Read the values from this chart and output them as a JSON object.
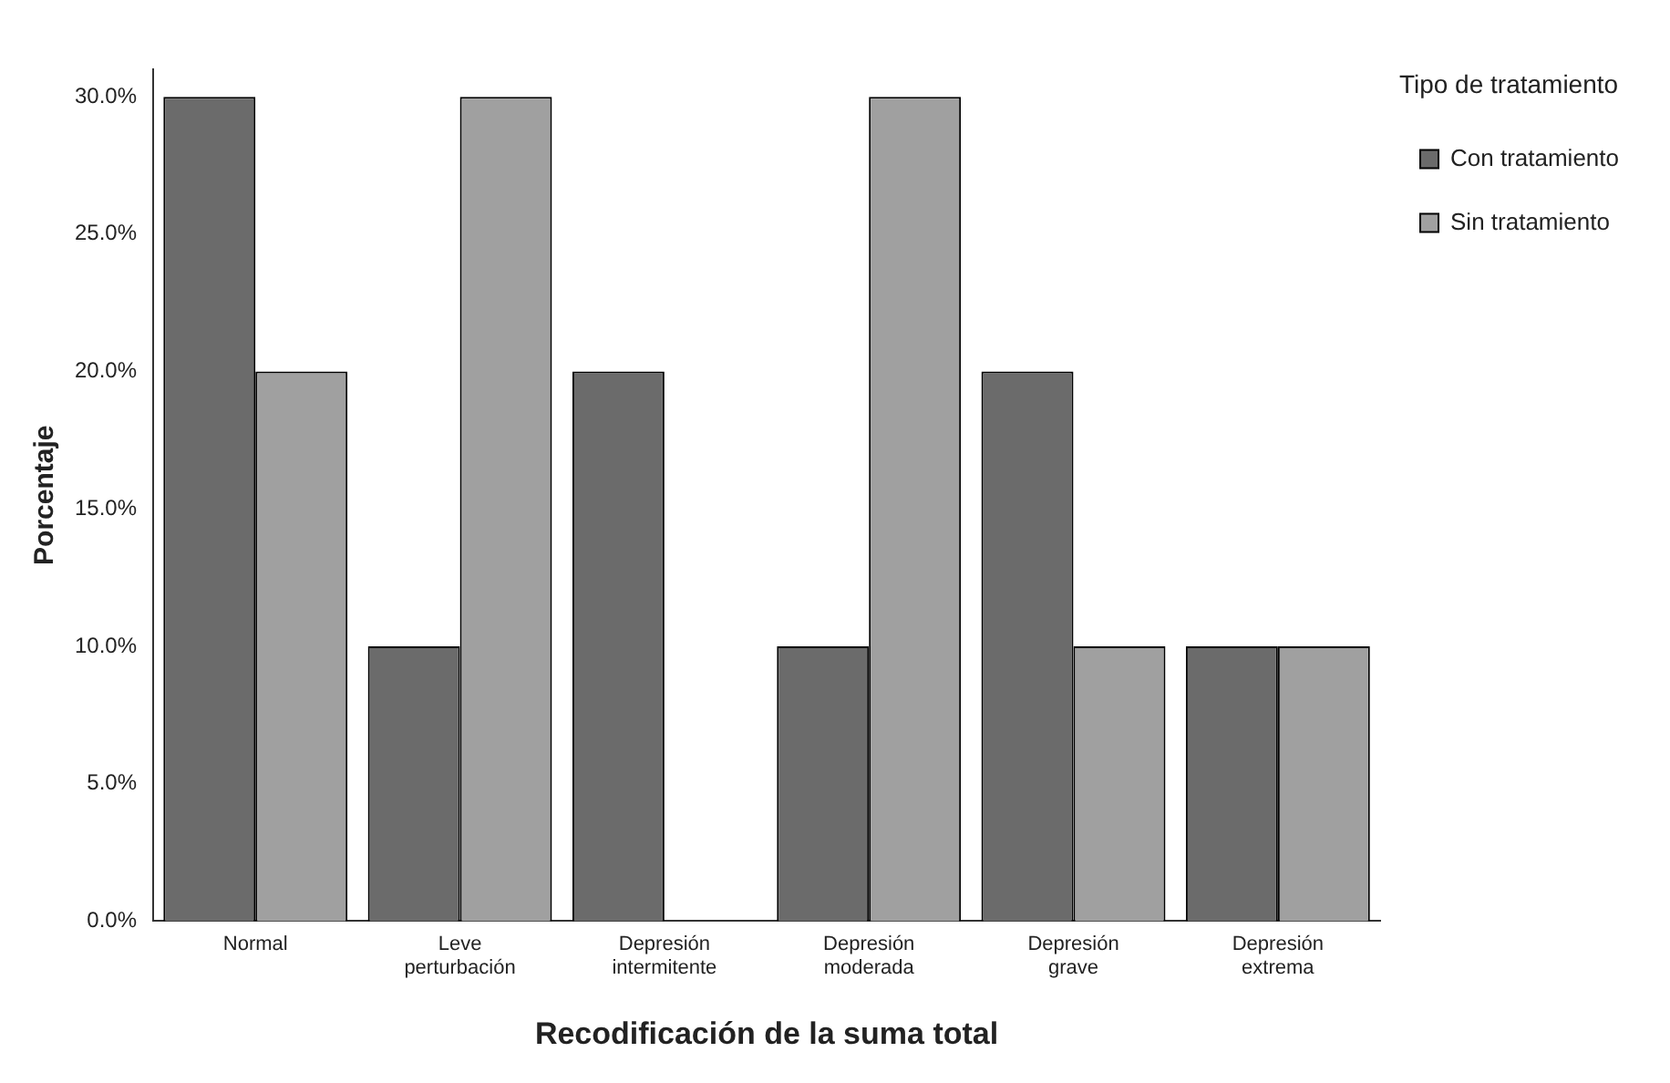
{
  "chart_data": {
    "type": "bar",
    "xlabel": "Recodificación de la suma total",
    "ylabel": "Porcentaje",
    "legend_title": "Tipo de tratamiento",
    "categories": [
      "Normal",
      "Leve perturbación",
      "Depresión intermitente",
      "Depresión moderada",
      "Depresión grave",
      "Depresión extrema"
    ],
    "series": [
      {
        "name": "Con tratamiento",
        "color": "#6b6b6b",
        "values": [
          30,
          10,
          20,
          10,
          20,
          10
        ]
      },
      {
        "name": "Sin tratamiento",
        "color": "#a0a0a0",
        "values": [
          20,
          30,
          0,
          30,
          10,
          10
        ]
      }
    ],
    "ylim": [
      0,
      31
    ],
    "yticks": [
      {
        "value": 0,
        "label": "0.0%"
      },
      {
        "value": 5,
        "label": "5.0%"
      },
      {
        "value": 10,
        "label": "10.0%"
      },
      {
        "value": 15,
        "label": "15.0%"
      },
      {
        "value": 20,
        "label": "20.0%"
      },
      {
        "value": 25,
        "label": "25.0%"
      },
      {
        "value": 30,
        "label": "30.0%"
      }
    ],
    "grid": false,
    "legend": "top right"
  }
}
